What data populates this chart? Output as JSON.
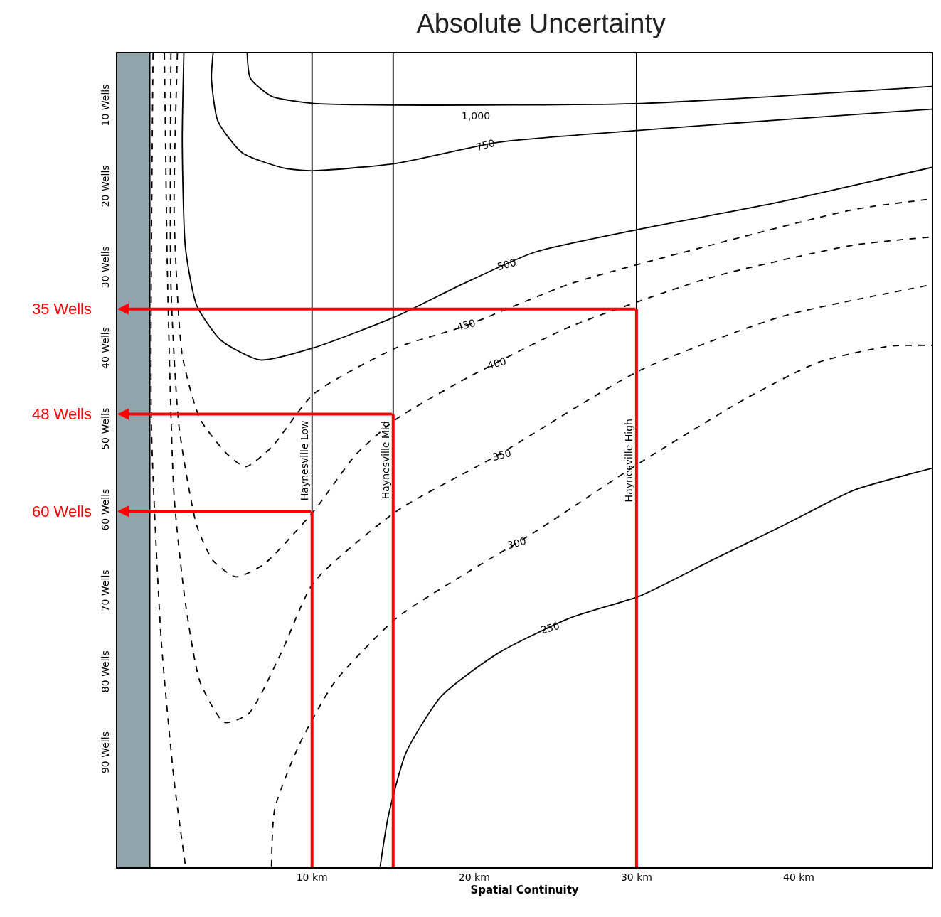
{
  "chart_data": {
    "type": "line",
    "title": "Absolute Uncertainty",
    "xlabel": "Spatial Continuity",
    "xlim": [
      -2,
      48.2
    ],
    "ylim": [
      104,
      3.4
    ],
    "xticks": [
      {
        "value": 10,
        "label": "10 km"
      },
      {
        "value": 20,
        "label": "20 km"
      },
      {
        "value": 30,
        "label": "30 km"
      },
      {
        "value": 40,
        "label": "40 km"
      }
    ],
    "yticks": [
      {
        "value": 10,
        "label": "10 Wells"
      },
      {
        "value": 20,
        "label": "20 Wells"
      },
      {
        "value": 30,
        "label": "30 Wells"
      },
      {
        "value": 40,
        "label": "40 Wells"
      },
      {
        "value": 50,
        "label": "50 Wells"
      },
      {
        "value": 60,
        "label": "60 Wells"
      },
      {
        "value": 70,
        "label": "70 Wells"
      },
      {
        "value": 80,
        "label": "80 Wells"
      },
      {
        "value": 90,
        "label": "90 Wells"
      }
    ],
    "grid": false,
    "legend": false,
    "marker": "none",
    "series": [
      {
        "color": "#000000",
        "line_style": "solid",
        "x": [
          6.0,
          6.2,
          7.5,
          10.1,
          15.2,
          30.3,
          48.2
        ],
        "values": [
          3.4,
          6.5,
          8.7,
          9.6,
          9.8,
          9.6,
          7.5
        ]
      },
      {
        "color": "#000000",
        "line_style": "solid",
        "x": [
          3.9,
          3.8,
          4.2,
          5.7,
          8.3,
          10.1,
          15.2,
          21.5,
          30.3,
          39.0,
          48.2
        ],
        "values": [
          3.4,
          6.5,
          11.8,
          15.7,
          17.6,
          17.9,
          17.0,
          14.4,
          12.9,
          11.6,
          10.3
        ]
      },
      {
        "color": "#000000",
        "line_style": "solid",
        "x": [
          2.1,
          2.0,
          2.2,
          2.9,
          4.4,
          6.8,
          10.1,
          15.2,
          19.3,
          23.7,
          30.3,
          39.0,
          48.2
        ],
        "values": [
          3.4,
          14.4,
          27.5,
          34.6,
          38.9,
          41.3,
          39.8,
          35.9,
          31.9,
          28.0,
          25.1,
          21.7,
          17.5
        ]
      },
      {
        "color": "#000000",
        "line_style": "dashed",
        "x": [
          1.7,
          1.5,
          2.0,
          3.1,
          4.8,
          5.9,
          7.5,
          10.1,
          15.2,
          19.3,
          25.9,
          34.6,
          43.4,
          48.2
        ],
        "values": [
          3.4,
          23.2,
          40.7,
          48.6,
          53.0,
          54.5,
          52.1,
          45.5,
          39.8,
          37.2,
          31.9,
          27.1,
          22.7,
          21.4
        ]
      },
      {
        "color": "#000000",
        "line_style": "dashed",
        "x": [
          1.3,
          1.3,
          1.8,
          2.9,
          3.9,
          5.3,
          7.0,
          10.1,
          12.7,
          15.2,
          19.3,
          25.9,
          34.6,
          43.4,
          48.2
        ],
        "values": [
          3.4,
          31.9,
          49.5,
          61.8,
          66.1,
          68.1,
          66.6,
          60.0,
          53.0,
          48.6,
          43.8,
          37.2,
          31.1,
          27.1,
          26.1
        ]
      },
      {
        "color": "#000000",
        "line_style": "dashed",
        "x": [
          0.9,
          1.1,
          1.5,
          2.2,
          3.1,
          4.6,
          6.1,
          8.1,
          10.1,
          15.2,
          21.5,
          30.3,
          39.0,
          48.2
        ],
        "values": [
          3.4,
          31.9,
          58.2,
          71.4,
          81.1,
          86.1,
          85.0,
          77.5,
          68.8,
          60.0,
          53.0,
          42.5,
          35.9,
          32.0
        ]
      },
      {
        "color": "#000000",
        "line_style": "dashed",
        "x": [
          7.5,
          7.7,
          9.2,
          11.4,
          15.2,
          19.3,
          23.7,
          30.3,
          36.8,
          41.2,
          45.6,
          48.2
        ],
        "values": [
          103.9,
          96.8,
          88.9,
          81.1,
          73.2,
          67.9,
          62.6,
          53.9,
          46.0,
          41.6,
          39.6,
          39.5
        ]
      },
      {
        "color": "#000000",
        "line_style": "dashed",
        "x": [
          0.2,
          0.1,
          0.7,
          1.5,
          2.2
        ],
        "values": [
          3.4,
          49.5,
          75.8,
          93.3,
          103.9
        ]
      },
      {
        "color": "#000000",
        "line_style": "solid",
        "x": [
          14.2,
          14.7,
          15.8,
          18.0,
          21.5,
          25.9,
          30.3,
          34.6,
          39.0,
          43.4,
          48.2
        ],
        "values": [
          103.9,
          97.7,
          89.8,
          82.8,
          77.5,
          73.2,
          70.4,
          66.1,
          61.8,
          57.4,
          54.7
        ]
      },
      {
        "color": "#ff0000",
        "line_style": "solid",
        "x": [
          30,
          30
        ],
        "values": [
          104,
          35
        ]
      },
      {
        "color": "#ff0000",
        "line_style": "solid",
        "x": [
          15,
          15
        ],
        "values": [
          104,
          48
        ]
      },
      {
        "color": "#ff0000",
        "line_style": "solid",
        "x": [
          10,
          10
        ],
        "values": [
          104,
          60
        ]
      }
    ],
    "ref_lines": [
      {
        "axis": "x",
        "value": 0,
        "color": "#000000"
      },
      {
        "axis": "x",
        "value": 10,
        "label": "Haynesville Low",
        "color": "#000000"
      },
      {
        "axis": "x",
        "value": 15,
        "label": "Haynesville Mid",
        "color": "#000000"
      },
      {
        "axis": "x",
        "value": 30,
        "label": "Haynesville High",
        "color": "#000000"
      }
    ],
    "bands": [
      {
        "axis": "x",
        "from": -2,
        "to": 0,
        "color": "#8fa5ab"
      }
    ],
    "annotations": [
      {
        "text": "1,000",
        "x": 20.1,
        "y": 9.75
      },
      {
        "text": "750",
        "x": 20.7,
        "y": 14.7
      },
      {
        "text": "500",
        "x": 22.0,
        "y": 29.5
      },
      {
        "text": "450",
        "x": 19.5,
        "y": 37.0
      },
      {
        "text": "400",
        "x": 21.4,
        "y": 41.7
      },
      {
        "text": "350",
        "x": 21.7,
        "y": 53.0
      },
      {
        "text": "300",
        "x": 22.6,
        "y": 63.9
      },
      {
        "text": "250",
        "x": 24.7,
        "y": 74.4
      },
      {
        "text": "35 Wells",
        "x": -2,
        "y": 35
      },
      {
        "text": "48 Wells",
        "x": -2,
        "y": 48
      },
      {
        "text": "60 Wells",
        "x": -2,
        "y": 60
      }
    ]
  }
}
